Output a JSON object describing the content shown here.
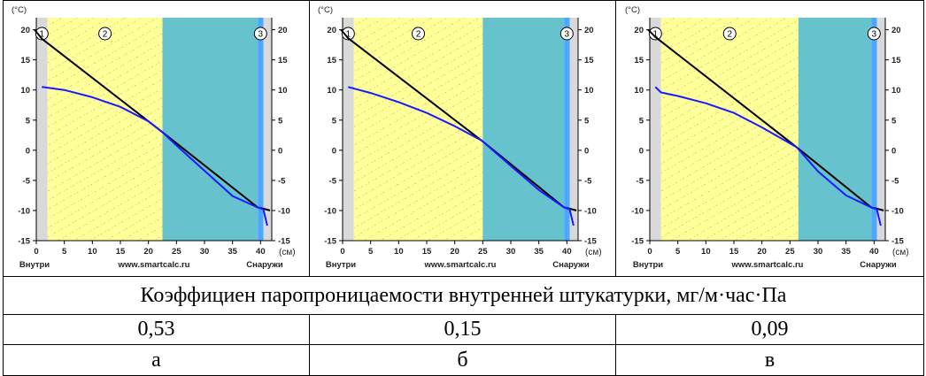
{
  "table": {
    "caption": "Коэффициен паропроницаемости внутренней штукатурки, мг/м·час·Па",
    "values": [
      "0,53",
      "0,15",
      "0,09"
    ],
    "labels": [
      "а",
      "б",
      "в"
    ]
  },
  "colors": {
    "plaster_inner": "#d9d9d9",
    "layer_main": "#ffff99",
    "insulation": "#66c2cc",
    "plaster_outer": "#4da6ff",
    "temperature_line": "#000000",
    "dewpoint_line": "#1a1aff"
  },
  "chart_data": [
    {
      "type": "line",
      "unit_y": "(°C)",
      "unit_x": "(см)",
      "left_label": "Внутри",
      "center_label": "www.smartcalc.ru",
      "right_label": "Снаружи",
      "xlim": [
        0,
        42
      ],
      "ylim": [
        -15,
        22
      ],
      "x_ticks": [
        "0",
        "5",
        "10",
        "15",
        "20",
        "25",
        "30",
        "35",
        "40"
      ],
      "y_ticks": [
        "20",
        "15",
        "10",
        "5",
        "0",
        "-5",
        "-10",
        "-15"
      ],
      "layer_markers": [
        "1",
        "2",
        "3"
      ],
      "layers": [
        [
          0,
          2
        ],
        [
          2,
          22.5
        ],
        [
          22.5,
          39.5
        ],
        [
          39.5,
          40.5
        ],
        [
          40.5,
          42
        ]
      ],
      "series": [
        {
          "x": [
            -0.3,
            1,
            22.5,
            39.5,
            40.5,
            41.7
          ],
          "y": [
            20,
            18.5,
            3,
            -9.5,
            -9.7,
            -10
          ]
        },
        {
          "x": [
            1,
            5,
            10,
            15,
            20,
            22.5,
            25,
            30,
            35,
            39.5,
            40.5,
            41.2
          ],
          "y": [
            10.5,
            10,
            8.8,
            7.2,
            4.8,
            3,
            0.8,
            -3.4,
            -7.6,
            -9.5,
            -9.8,
            -12.5
          ]
        }
      ]
    },
    {
      "type": "line",
      "unit_y": "(°C)",
      "unit_x": "(см)",
      "left_label": "Внутри",
      "center_label": "www.smartcalc.ru",
      "right_label": "Снаружи",
      "xlim": [
        0,
        42
      ],
      "ylim": [
        -15,
        22
      ],
      "x_ticks": [
        "0",
        "5",
        "10",
        "15",
        "20",
        "25",
        "30",
        "35",
        "40"
      ],
      "y_ticks": [
        "20",
        "15",
        "10",
        "5",
        "0",
        "-5",
        "-10",
        "-15"
      ],
      "layer_markers": [
        "1",
        "2",
        "3"
      ],
      "layers": [
        [
          0,
          2
        ],
        [
          2,
          25
        ],
        [
          25,
          39.5
        ],
        [
          39.5,
          40.5
        ],
        [
          40.5,
          42
        ]
      ],
      "series": [
        {
          "x": [
            -0.3,
            1,
            24.8,
            39.5,
            40.5,
            41.7
          ],
          "y": [
            20,
            18.6,
            1.6,
            -9.5,
            -9.7,
            -10
          ]
        },
        {
          "x": [
            1,
            5,
            10,
            15,
            20,
            24.8,
            30,
            35,
            39.5,
            40.5,
            41.2
          ],
          "y": [
            10.5,
            9.5,
            8,
            6.2,
            4,
            1.6,
            -2.6,
            -6.6,
            -9.5,
            -9.8,
            -12.5
          ]
        }
      ]
    },
    {
      "type": "line",
      "unit_y": "(°C)",
      "unit_x": "(см)",
      "left_label": "Внутри",
      "center_label": "www.smartcalc.ru",
      "right_label": "Снаружи",
      "xlim": [
        0,
        42
      ],
      "ylim": [
        -15,
        22
      ],
      "x_ticks": [
        "0",
        "5",
        "10",
        "15",
        "20",
        "25",
        "30",
        "35",
        "40"
      ],
      "y_ticks": [
        "20",
        "15",
        "10",
        "5",
        "0",
        "-5",
        "-10",
        "-15"
      ],
      "layer_markers": [
        "1",
        "2",
        "3"
      ],
      "layers": [
        [
          0,
          2
        ],
        [
          2,
          26.5
        ],
        [
          26.5,
          39.5
        ],
        [
          39.5,
          40.5
        ],
        [
          40.5,
          42
        ]
      ],
      "series": [
        {
          "x": [
            -0.3,
            1,
            26.2,
            39.5,
            40.5,
            41.7
          ],
          "y": [
            20,
            18.8,
            0.5,
            -9.5,
            -9.7,
            -10
          ]
        },
        {
          "x": [
            1,
            2,
            5,
            10,
            15,
            20,
            26.2,
            30,
            35,
            39.5,
            40.5,
            41.2
          ],
          "y": [
            10.5,
            9.6,
            9,
            7.8,
            6.2,
            3.8,
            0.5,
            -3.5,
            -7.5,
            -9.5,
            -9.8,
            -12.5
          ]
        }
      ]
    }
  ]
}
